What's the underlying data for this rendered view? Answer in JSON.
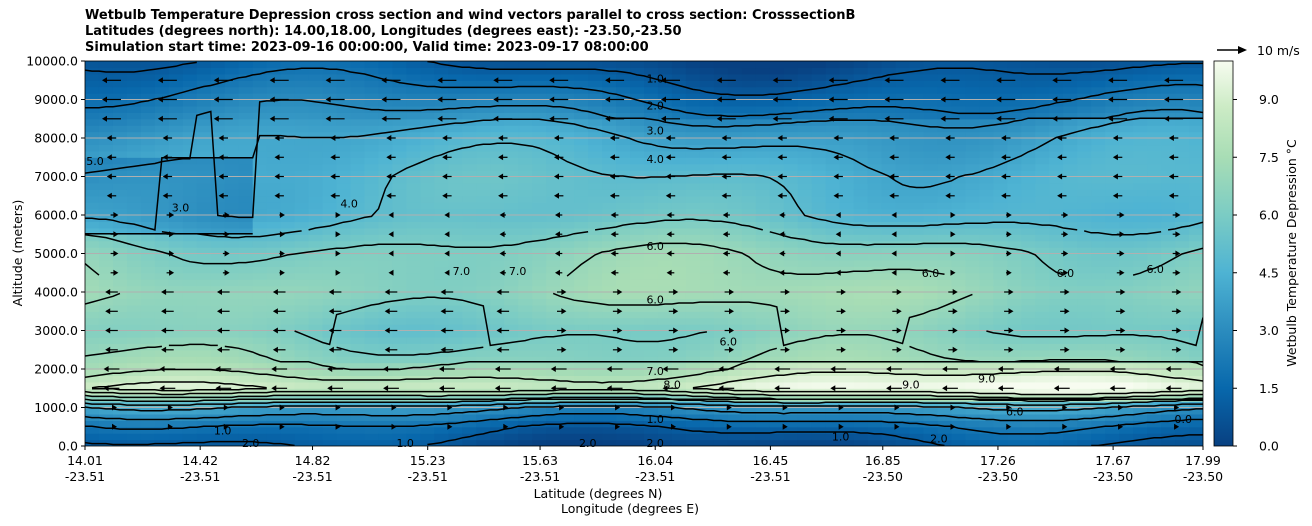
{
  "chart_data": {
    "type": "heatmap",
    "title_lines": [
      "Wetbulb Temperature Depression cross section and wind vectors parallel to cross section: CrosssectionB",
      "Latitudes (degrees north): 14.00,18.00, Longitudes (degrees east): -23.50,-23.50",
      "Simulation start time: 2023-09-16 00:00:00, Valid time: 2023-09-17 08:00:00"
    ],
    "ylabel": "Altitude (meters)",
    "xlabel_lines": [
      "Latitude (degrees N)",
      "Longitude (degrees E)"
    ],
    "ylim": [
      0,
      10000
    ],
    "y_ticks": [
      "0.0",
      "1000.0",
      "2000.0",
      "3000.0",
      "4000.0",
      "5000.0",
      "6000.0",
      "7000.0",
      "8000.0",
      "9000.0",
      "10000.0"
    ],
    "x_ticks": [
      {
        "lat": "14.01",
        "lon": "-23.51"
      },
      {
        "lat": "14.42",
        "lon": "-23.51"
      },
      {
        "lat": "14.82",
        "lon": "-23.51"
      },
      {
        "lat": "15.23",
        "lon": "-23.51"
      },
      {
        "lat": "15.63",
        "lon": "-23.51"
      },
      {
        "lat": "16.04",
        "lon": "-23.51"
      },
      {
        "lat": "16.45",
        "lon": "-23.51"
      },
      {
        "lat": "16.85",
        "lon": "-23.50"
      },
      {
        "lat": "17.26",
        "lon": "-23.50"
      },
      {
        "lat": "17.67",
        "lon": "-23.50"
      },
      {
        "lat": "17.99",
        "lon": "-23.50"
      }
    ],
    "colorbar": {
      "label": "Wetbulb Temperature Depression °C",
      "range": [
        0,
        10
      ],
      "ticks": [
        "0.0",
        "1.5",
        "3.0",
        "4.5",
        "6.0",
        "7.5",
        "9.0"
      ]
    },
    "wind_key": "10 m/s",
    "grid": "horizontal",
    "profile": [
      {
        "alt": 0,
        "value": 0.5
      },
      {
        "alt": 500,
        "value": 1.5
      },
      {
        "alt": 1000,
        "value": 3.5
      },
      {
        "alt": 1500,
        "value": 8.5
      },
      {
        "alt": 2000,
        "value": 7.0
      },
      {
        "alt": 3000,
        "value": 6.0
      },
      {
        "alt": 4000,
        "value": 7.0
      },
      {
        "alt": 5000,
        "value": 6.5
      },
      {
        "alt": 6000,
        "value": 5.0
      },
      {
        "alt": 7000,
        "value": 4.8
      },
      {
        "alt": 8000,
        "value": 4.0
      },
      {
        "alt": 9000,
        "value": 2.5
      },
      {
        "alt": 10000,
        "value": 1.0
      }
    ],
    "contour_labels": [
      {
        "text": "1.0",
        "lat": 16.04,
        "alt": 9550
      },
      {
        "text": "2.0",
        "lat": 16.04,
        "alt": 8850
      },
      {
        "text": "3.0",
        "lat": 16.04,
        "alt": 8200
      },
      {
        "text": "4.0",
        "lat": 16.04,
        "alt": 7450
      },
      {
        "text": "6.0",
        "lat": 16.04,
        "alt": 5200
      },
      {
        "text": "6.0",
        "lat": 16.04,
        "alt": 3800
      },
      {
        "text": "7.0",
        "lat": 15.55,
        "alt": 4550
      },
      {
        "text": "7.0",
        "lat": 15.35,
        "alt": 4550
      },
      {
        "text": "6.0",
        "lat": 16.3,
        "alt": 2720
      },
      {
        "text": "7.0",
        "lat": 16.04,
        "alt": 1950
      },
      {
        "text": "8.0",
        "lat": 16.1,
        "alt": 1600
      },
      {
        "text": "9.0",
        "lat": 16.95,
        "alt": 1600
      },
      {
        "text": "9.0",
        "lat": 17.22,
        "alt": 1750
      },
      {
        "text": "6.0",
        "lat": 17.32,
        "alt": 900
      },
      {
        "text": "3.0",
        "lat": 14.35,
        "alt": 6200
      },
      {
        "text": "4.0",
        "lat": 14.95,
        "alt": 6300
      },
      {
        "text": "5.0",
        "lat": 14.01,
        "alt": 7400
      },
      {
        "text": "6.0",
        "lat": 17.02,
        "alt": 4500
      },
      {
        "text": "6.0",
        "lat": 17.5,
        "alt": 4500
      },
      {
        "text": "6.0",
        "lat": 17.82,
        "alt": 4600
      },
      {
        "text": "1.0",
        "lat": 16.04,
        "alt": 700
      },
      {
        "text": "2.0",
        "lat": 16.04,
        "alt": 80
      },
      {
        "text": "0.0",
        "lat": 17.92,
        "alt": 700
      },
      {
        "text": "1.0",
        "lat": 14.5,
        "alt": 400
      },
      {
        "text": "2.0",
        "lat": 14.6,
        "alt": 80
      },
      {
        "text": "1.0",
        "lat": 15.15,
        "alt": 80
      },
      {
        "text": "2.0",
        "lat": 15.8,
        "alt": 80
      },
      {
        "text": "1.0",
        "lat": 16.7,
        "alt": 250
      },
      {
        "text": "2.0",
        "lat": 17.05,
        "alt": 200
      }
    ]
  }
}
